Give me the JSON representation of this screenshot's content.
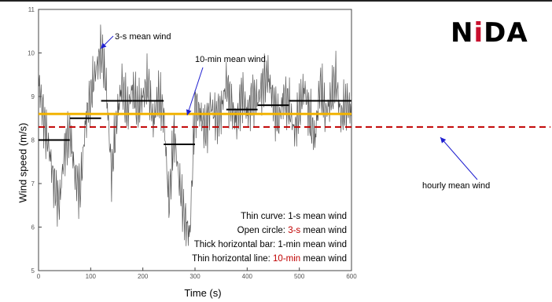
{
  "logo": {
    "text": "NiDA"
  },
  "labels": {
    "ylabel": "Wind speed (m/s)",
    "xlabel": "Time (s)",
    "hourly": "hourly mean wind",
    "tenmin": "10-min mean wind",
    "threesec": "3-s mean wind"
  },
  "legend": {
    "line1": "Thin curve: 1-s mean wind",
    "line2_prefix": "Open circle: ",
    "line2_red": "3-s",
    "line2_suffix": " mean wind",
    "line3": "Thick horizontal bar: 1-min mean wind",
    "line4_prefix": "Thin horizontal line: ",
    "line4_red": "10-min",
    "line4_suffix": " mean wind"
  },
  "colors": {
    "tenmin_line": "#f2b300",
    "hourly_line": "#c00000",
    "arrow": "#1f1fd0",
    "accent_red": "#c00000"
  },
  "chart_data": {
    "type": "line",
    "xlabel": "Time (s)",
    "ylabel": "Wind speed (m/s)",
    "xlim": [
      0,
      600
    ],
    "ylim": [
      5,
      11
    ],
    "xticks": [
      0,
      100,
      200,
      300,
      400,
      500,
      600
    ],
    "yticks": [
      5,
      6,
      7,
      8,
      9,
      10,
      11
    ],
    "ten_min_mean": 8.6,
    "hourly_mean": 8.3,
    "one_min_means": [
      {
        "x0": 0,
        "x1": 60,
        "y": 8.0
      },
      {
        "x0": 60,
        "x1": 120,
        "y": 8.5
      },
      {
        "x0": 120,
        "x1": 180,
        "y": 8.9
      },
      {
        "x0": 180,
        "x1": 240,
        "y": 8.9
      },
      {
        "x0": 240,
        "x1": 300,
        "y": 7.9
      },
      {
        "x0": 300,
        "x1": 360,
        "y": 8.6
      },
      {
        "x0": 360,
        "x1": 420,
        "y": 8.7
      },
      {
        "x0": 420,
        "x1": 480,
        "y": 8.8
      },
      {
        "x0": 480,
        "x1": 540,
        "y": 8.9
      },
      {
        "x0": 540,
        "x1": 600,
        "y": 8.9
      }
    ],
    "one_sec_series": {
      "x": [
        0,
        10,
        20,
        30,
        40,
        50,
        60,
        70,
        80,
        90,
        100,
        110,
        120,
        130,
        140,
        150,
        160,
        170,
        180,
        190,
        200,
        210,
        220,
        230,
        240,
        250,
        260,
        270,
        280,
        290,
        300,
        310,
        320,
        330,
        340,
        350,
        360,
        370,
        380,
        390,
        400,
        410,
        420,
        430,
        440,
        450,
        460,
        470,
        480,
        490,
        500,
        510,
        520,
        530,
        540,
        550,
        560,
        570,
        580,
        590,
        600
      ],
      "y": [
        9.4,
        8.5,
        7.8,
        7.0,
        6.5,
        7.8,
        8.2,
        7.2,
        6.8,
        8.4,
        9.0,
        9.6,
        10.1,
        9.2,
        7.2,
        8.5,
        9.3,
        8.6,
        9.2,
        8.7,
        9.0,
        9.3,
        8.4,
        9.0,
        8.6,
        6.5,
        8.2,
        7.0,
        6.2,
        5.8,
        8.8,
        8.6,
        8.2,
        8.8,
        8.5,
        8.7,
        9.3,
        8.8,
        8.4,
        9.1,
        8.6,
        9.0,
        8.9,
        9.3,
        9.5,
        8.9,
        8.4,
        9.0,
        8.8,
        8.2,
        8.7,
        9.2,
        8.5,
        8.0,
        9.3,
        8.6,
        8.9,
        9.4,
        8.5,
        8.8,
        8.7
      ]
    }
  }
}
